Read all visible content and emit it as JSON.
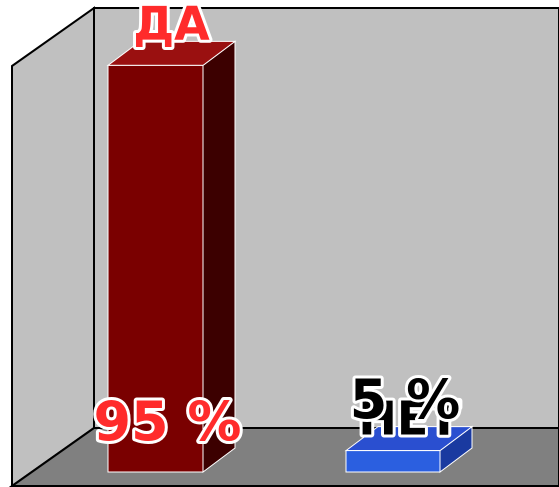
{
  "chart_data": {
    "type": "bar",
    "categories": [
      "ДА",
      "НЕТ"
    ],
    "values": [
      95,
      5
    ],
    "value_labels": [
      "95 %",
      "5 %"
    ],
    "unit": "%",
    "ylim": [
      0,
      100
    ],
    "grid": false,
    "legend": "none",
    "three_d": true,
    "colors": {
      "bar_front": [
        "#7a0000",
        "#2b5fe0"
      ],
      "bar_side": [
        "#3c0000",
        "#1a3aa0"
      ],
      "bar_top": [
        "#9a1010",
        "#2a4fd0"
      ],
      "category_label": [
        "#ff2b2b",
        "#000000"
      ],
      "value_label": [
        "#ff2b2b",
        "#000000"
      ],
      "label_outline": [
        "#ffffff",
        "#ffffff"
      ],
      "back_wall": "#c0c0c0",
      "side_wall": "#c0c0c0",
      "floor": "#808080",
      "wall_edge": "#000000"
    }
  }
}
